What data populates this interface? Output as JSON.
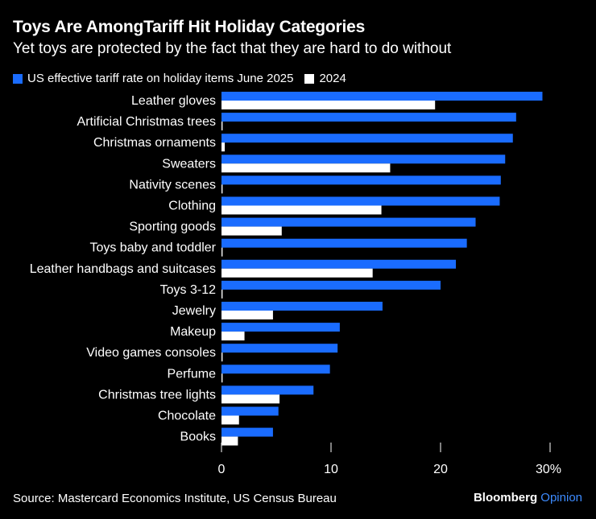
{
  "header": {
    "title": "Toys Are AmongTariff Hit Holiday Categories",
    "subtitle": "Yet toys are protected by the fact that they are hard to do without"
  },
  "footer": {
    "source": "Source: Mastercard Economics Institute, US Census Bureau",
    "brand": "Bloomberg",
    "brand_suffix": "Opinion"
  },
  "colors": {
    "series_2025": "#1a6cff",
    "series_2024": "#ffffff",
    "background": "#000000",
    "brand_opinion": "#3d8bff"
  },
  "chart_data": {
    "type": "bar",
    "orientation": "horizontal",
    "categories": [
      "Leather gloves",
      "Artificial Christmas trees",
      "Christmas ornaments",
      "Sweaters",
      "Nativity scenes",
      "Clothing",
      "Sporting goods",
      "Toys baby and toddler",
      "Leather handbags and suitcases",
      "Toys 3-12",
      "Jewelry",
      "Makeup",
      "Video games consoles",
      "Perfume",
      "Christmas tree lights",
      "Chocolate",
      "Books"
    ],
    "series": [
      {
        "name": "US effective tariff rate on holiday items June 2025",
        "values": [
          29.3,
          26.9,
          26.6,
          25.9,
          25.5,
          25.4,
          23.2,
          22.4,
          21.4,
          20.0,
          14.7,
          10.8,
          10.6,
          9.9,
          8.4,
          5.2,
          4.7
        ]
      },
      {
        "name": "2024",
        "values": [
          19.5,
          0.1,
          0.3,
          15.4,
          0.1,
          14.6,
          5.5,
          0.1,
          13.8,
          0.1,
          4.7,
          2.1,
          0.1,
          0.1,
          5.3,
          1.6,
          1.5
        ]
      }
    ],
    "xticks": [
      "0",
      "10",
      "20",
      "30%"
    ],
    "xlim": [
      0,
      30
    ],
    "legend_position": "top-left",
    "grid": false
  }
}
